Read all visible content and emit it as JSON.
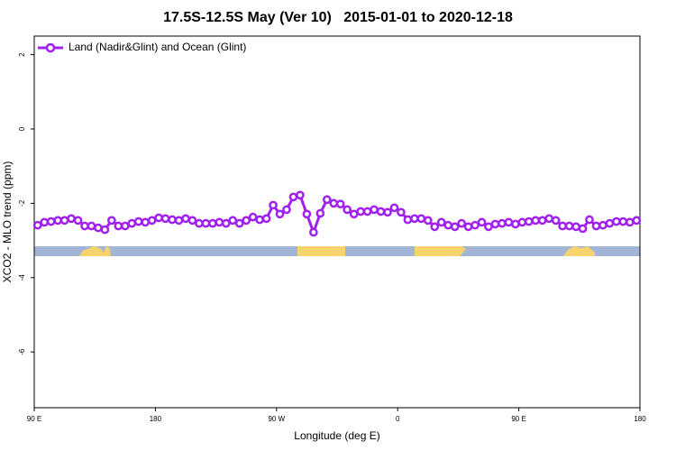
{
  "chart_data": {
    "type": "line",
    "title": "17.5S-12.5S May (Ver 10)   2015-01-01 to 2020-12-18",
    "x_label": "Longitude (deg E)",
    "y_label": "XCO2 - MLO trend (ppm)",
    "xlim": [
      90,
      540
    ],
    "xticks": [
      {
        "value": 90,
        "label": "90 E"
      },
      {
        "value": 180,
        "label": "180"
      },
      {
        "value": 270,
        "label": "90 W"
      },
      {
        "value": 360,
        "label": "0"
      },
      {
        "value": 450,
        "label": "90 E"
      },
      {
        "value": 540,
        "label": "180"
      }
    ],
    "ylim": [
      -7.5,
      2.5
    ],
    "yticks": [
      2,
      0,
      -2,
      -4,
      -6
    ],
    "legend": "top-left",
    "x": [
      92.5,
      97.5,
      102.5,
      107.5,
      112.5,
      117.5,
      122.5,
      127.5,
      132.5,
      137.5,
      142.5,
      147.5,
      152.5,
      157.5,
      162.5,
      167.5,
      172.5,
      177.5,
      182.5,
      187.5,
      192.5,
      197.5,
      202.5,
      207.5,
      212.5,
      217.5,
      222.5,
      227.5,
      232.5,
      237.5,
      242.5,
      247.5,
      252.5,
      257.5,
      262.5,
      267.5,
      272.5,
      277.5,
      282.5,
      287.5,
      292.5,
      297.5,
      302.5,
      307.5,
      312.5,
      317.5,
      322.5,
      327.5,
      332.5,
      337.5,
      342.5,
      347.5,
      352.5,
      357.5,
      362.5,
      367.5,
      372.5,
      377.5,
      382.5,
      387.5,
      392.5,
      397.5,
      402.5,
      407.5,
      412.5,
      417.5,
      422.5,
      427.5,
      432.5,
      437.5,
      442.5,
      447.5,
      452.5,
      457.5,
      462.5,
      467.5,
      472.5,
      477.5,
      482.5,
      487.5,
      492.5,
      497.5,
      502.5,
      507.5,
      512.5,
      517.5,
      522.5,
      527.5,
      532.5,
      537.5
    ],
    "series": [
      {
        "name": "Land (Nadir&Glint) and Ocean (Glint)",
        "color": "#a020f0",
        "values": [
          -2.59,
          -2.51,
          -2.49,
          -2.46,
          -2.46,
          -2.41,
          -2.46,
          -2.61,
          -2.61,
          -2.66,
          -2.71,
          -2.46,
          -2.61,
          -2.61,
          -2.54,
          -2.49,
          -2.51,
          -2.46,
          -2.39,
          -2.41,
          -2.44,
          -2.46,
          -2.41,
          -2.46,
          -2.54,
          -2.54,
          -2.54,
          -2.51,
          -2.54,
          -2.46,
          -2.54,
          -2.46,
          -2.37,
          -2.44,
          -2.41,
          -2.05,
          -2.29,
          -2.17,
          -1.83,
          -1.78,
          -2.29,
          -2.78,
          -2.27,
          -1.9,
          -2.0,
          -2.02,
          -2.17,
          -2.29,
          -2.22,
          -2.22,
          -2.17,
          -2.22,
          -2.24,
          -2.12,
          -2.24,
          -2.44,
          -2.41,
          -2.41,
          -2.46,
          -2.63,
          -2.51,
          -2.59,
          -2.63,
          -2.54,
          -2.63,
          -2.59,
          -2.51,
          -2.63,
          -2.56,
          -2.54,
          -2.51,
          -2.56,
          -2.51,
          -2.49,
          -2.46,
          -2.46,
          -2.41,
          -2.46,
          -2.61,
          -2.61,
          -2.63,
          -2.68,
          -2.44,
          -2.61,
          -2.59,
          -2.54,
          -2.49,
          -2.49,
          -2.51,
          -2.46
        ]
      }
    ]
  }
}
